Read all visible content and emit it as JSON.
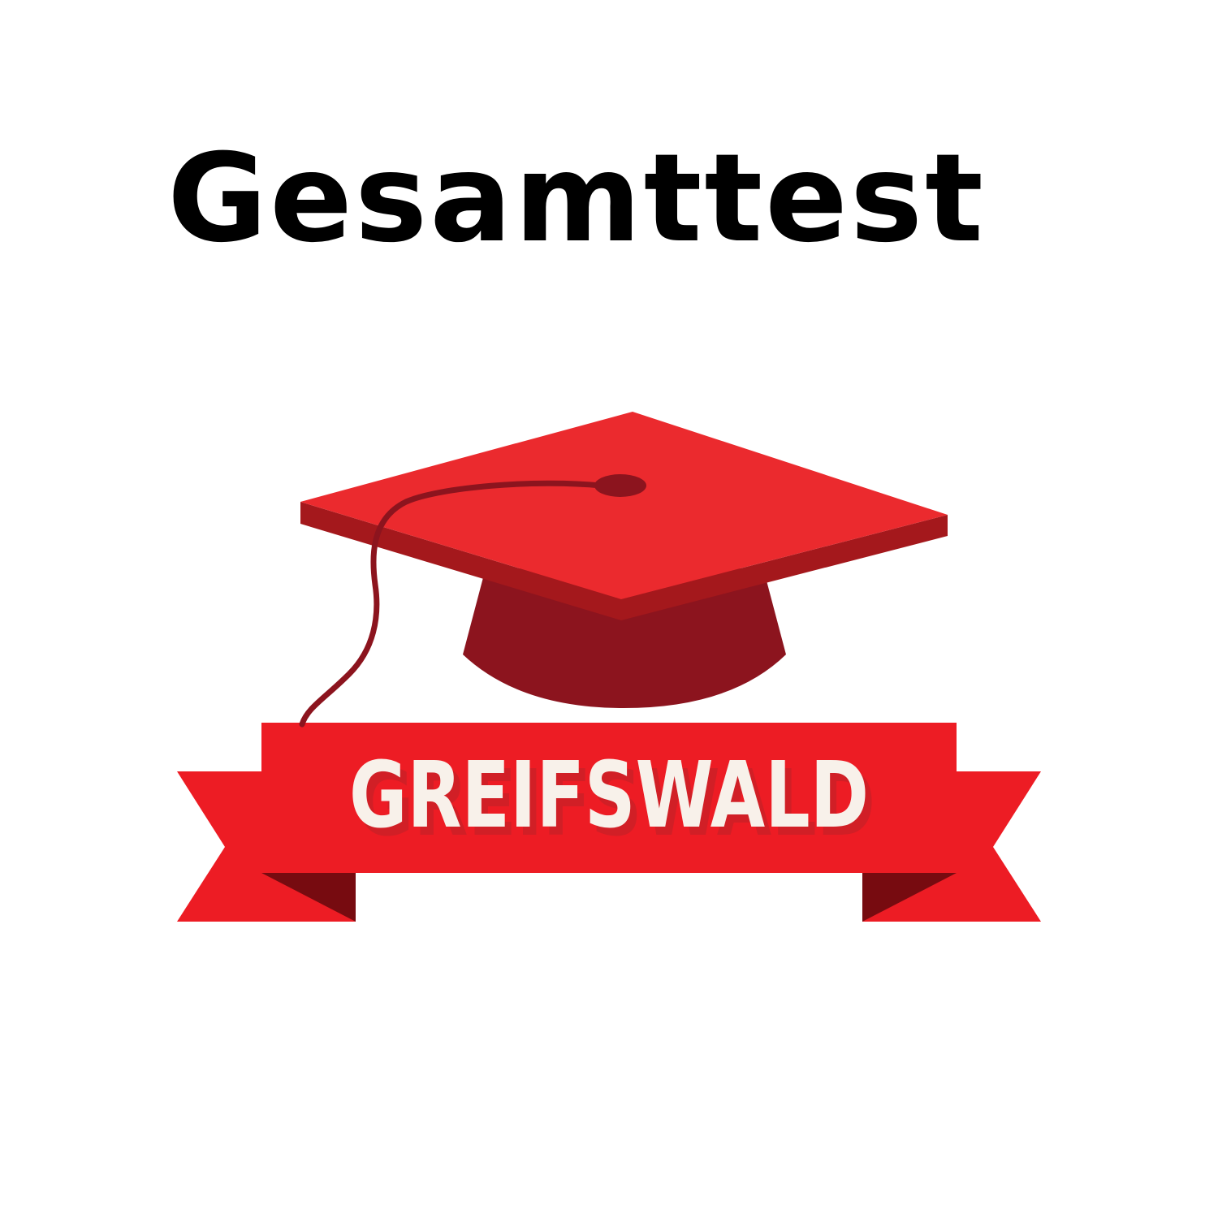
{
  "page": {
    "title": "Gesamttest",
    "background_color": "#ffffff"
  },
  "emblem": {
    "icon": "graduation-cap-icon",
    "banner_text": "GREIFSWALD",
    "colors": {
      "cap_top": "#eb2a2e",
      "cap_edge": "#a4181c",
      "cap_base": "#8c141e",
      "tassel": "#8c141e",
      "banner": "#ed1c24",
      "banner_fold": "#770b10",
      "banner_text": "#f8f1ea",
      "banner_text_shadow": "#d11f26"
    }
  }
}
